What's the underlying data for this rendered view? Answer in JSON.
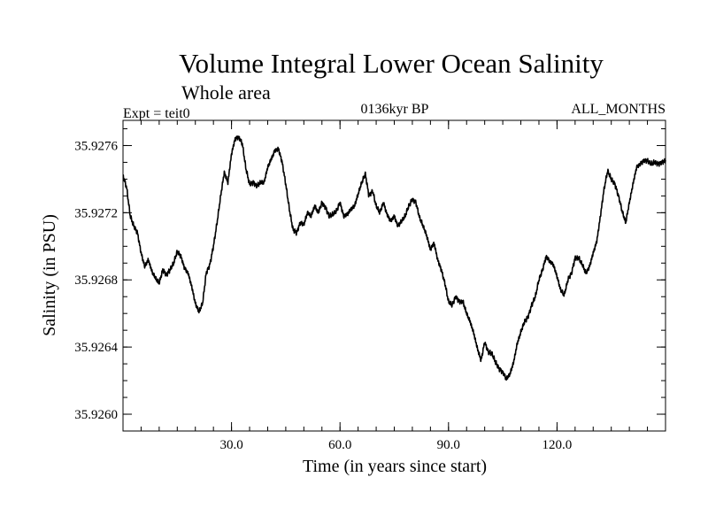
{
  "chart_data": {
    "type": "line",
    "title": "Volume Integral Lower Ocean Salinity",
    "subtitle": "Whole area",
    "expt_label": "Expt = teit0",
    "period_label": "0136kyr BP",
    "months_label": "ALL_MONTHS",
    "xlabel": "Time (in years since start)",
    "ylabel": "Salinity (in PSU)",
    "xlim": [
      0,
      150
    ],
    "ylim": [
      35.9259,
      35.92775
    ],
    "x_ticks": [
      30,
      60,
      90,
      120
    ],
    "x_tick_labels": [
      "30.0",
      "60.0",
      "90.0",
      "120.0"
    ],
    "y_ticks": [
      35.926,
      35.9264,
      35.9268,
      35.9272,
      35.9276
    ],
    "y_tick_labels": [
      "35.9260",
      "35.9264",
      "35.9268",
      "35.9272",
      "35.9276"
    ],
    "series": [
      {
        "name": "Salinity",
        "x": [
          0,
          1,
          2,
          3,
          4,
          5,
          6,
          7,
          8,
          9,
          10,
          11,
          12,
          13,
          14,
          15,
          16,
          17,
          18,
          19,
          20,
          21,
          22,
          23,
          24,
          25,
          26,
          27,
          28,
          29,
          30,
          31,
          32,
          33,
          34,
          35,
          36,
          37,
          38,
          39,
          40,
          41,
          42,
          43,
          44,
          45,
          46,
          47,
          48,
          49,
          50,
          51,
          52,
          53,
          54,
          55,
          56,
          57,
          58,
          59,
          60,
          61,
          62,
          63,
          64,
          65,
          66,
          67,
          68,
          69,
          70,
          71,
          72,
          73,
          74,
          75,
          76,
          77,
          78,
          79,
          80,
          81,
          82,
          83,
          84,
          85,
          86,
          87,
          88,
          89,
          90,
          91,
          92,
          93,
          94,
          95,
          96,
          97,
          98,
          99,
          100,
          101,
          102,
          103,
          104,
          105,
          106,
          107,
          108,
          109,
          110,
          111,
          112,
          113,
          114,
          115,
          116,
          117,
          118,
          119,
          120,
          121,
          122,
          123,
          124,
          125,
          126,
          127,
          128,
          129,
          130,
          131,
          132,
          133,
          134,
          135,
          136,
          137,
          138,
          139,
          140,
          141,
          142,
          143,
          144,
          145,
          146,
          147,
          148,
          149,
          150
        ],
        "values": [
          35.92742,
          35.92735,
          35.92718,
          35.92712,
          35.92708,
          35.92696,
          35.92688,
          35.92692,
          35.92685,
          35.92681,
          35.92678,
          35.92686,
          35.92683,
          35.92686,
          35.9269,
          35.92697,
          35.92694,
          35.92687,
          35.92684,
          35.92676,
          35.92666,
          35.92661,
          35.92666,
          35.92684,
          35.92689,
          35.927,
          35.92714,
          35.9273,
          35.92744,
          35.92738,
          35.92755,
          35.92764,
          35.92765,
          35.92761,
          35.92746,
          35.92737,
          35.92738,
          35.92736,
          35.92738,
          35.92738,
          35.92747,
          35.92752,
          35.92757,
          35.92758,
          35.9275,
          35.92737,
          35.92722,
          35.9271,
          35.92708,
          35.92714,
          35.92713,
          35.9272,
          35.92718,
          35.92724,
          35.9272,
          35.92726,
          35.92723,
          35.92718,
          35.92719,
          35.92721,
          35.92726,
          35.92718,
          35.92719,
          35.92722,
          35.92724,
          35.92731,
          35.92738,
          35.92743,
          35.9273,
          35.92733,
          35.92724,
          35.9272,
          35.92726,
          35.92719,
          35.92715,
          35.92718,
          35.92712,
          35.92715,
          35.92718,
          35.92724,
          35.92728,
          35.92726,
          35.92717,
          35.92712,
          35.92706,
          35.92698,
          35.92702,
          35.92692,
          35.92686,
          35.92678,
          35.92667,
          35.92665,
          35.9267,
          35.92667,
          35.92667,
          35.9266,
          35.92655,
          35.92648,
          35.92639,
          35.92632,
          35.92643,
          35.92637,
          35.92636,
          35.92631,
          35.92627,
          35.92625,
          35.92621,
          35.92624,
          35.92631,
          35.92642,
          35.92649,
          35.92655,
          35.92658,
          35.92665,
          35.9267,
          35.9268,
          35.92686,
          35.92694,
          35.92691,
          35.92689,
          35.92682,
          35.92674,
          35.92671,
          35.9268,
          35.92684,
          35.92693,
          35.92693,
          35.92689,
          35.92684,
          35.92688,
          35.92696,
          35.92703,
          35.92718,
          35.92734,
          35.92745,
          35.9274,
          35.92737,
          35.9273,
          35.92721,
          35.92714,
          35.92726,
          35.92737,
          35.92747,
          35.92749,
          35.92751,
          35.92751,
          35.92749,
          35.9275,
          35.92749,
          35.9275,
          35.92751
        ]
      }
    ]
  }
}
